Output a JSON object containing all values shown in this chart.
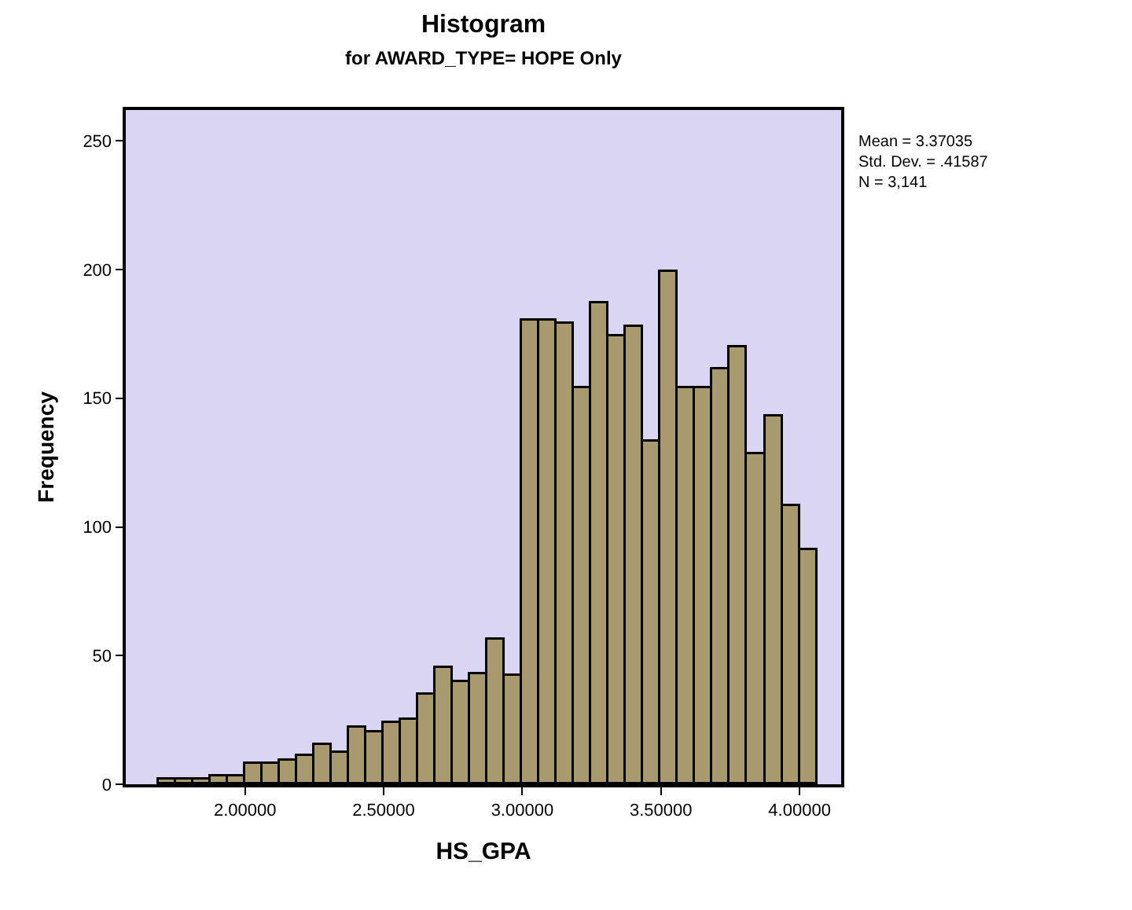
{
  "chart_data": {
    "type": "histogram",
    "title": "Histogram",
    "subtitle": "for AWARD_TYPE= HOPE Only",
    "xlabel": "HS_GPA",
    "ylabel": "Frequency",
    "bins": [
      1.6875,
      1.75,
      1.8125,
      1.875,
      1.9375,
      2.0,
      2.0625,
      2.125,
      2.1875,
      2.25,
      2.3125,
      2.375,
      2.4375,
      2.5,
      2.5625,
      2.625,
      2.6875,
      2.75,
      2.8125,
      2.875,
      2.9375,
      3.0,
      3.0625,
      3.125,
      3.1875,
      3.25,
      3.3125,
      3.375,
      3.4375,
      3.5,
      3.5625,
      3.625,
      3.6875,
      3.75,
      3.8125,
      3.875,
      3.9375,
      4.0,
      4.0625
    ],
    "values": [
      2,
      2,
      2,
      3,
      3,
      8,
      8,
      9,
      11,
      15,
      12,
      22,
      20,
      24,
      25,
      35,
      45,
      40,
      43,
      56,
      42,
      180,
      180,
      179,
      154,
      187,
      174,
      178,
      133,
      199,
      154,
      154,
      161,
      170,
      128,
      143,
      108,
      91
    ],
    "color": "#a89a6e",
    "xlim": [
      1.57,
      4.15
    ],
    "xticks": [
      {
        "value": 2.0,
        "label": "2.00000"
      },
      {
        "value": 2.5,
        "label": "2.50000"
      },
      {
        "value": 3.0,
        "label": "3.00000"
      },
      {
        "value": 3.5,
        "label": "3.50000"
      },
      {
        "value": 4.0,
        "label": "4.00000"
      }
    ],
    "ylim": [
      0,
      262
    ],
    "yticks": [
      0,
      50,
      100,
      150,
      200,
      250
    ],
    "grid": false,
    "annotations": [
      "Mean = 3.37035",
      "Std. Dev. = .41587",
      "N = 3,141"
    ]
  }
}
